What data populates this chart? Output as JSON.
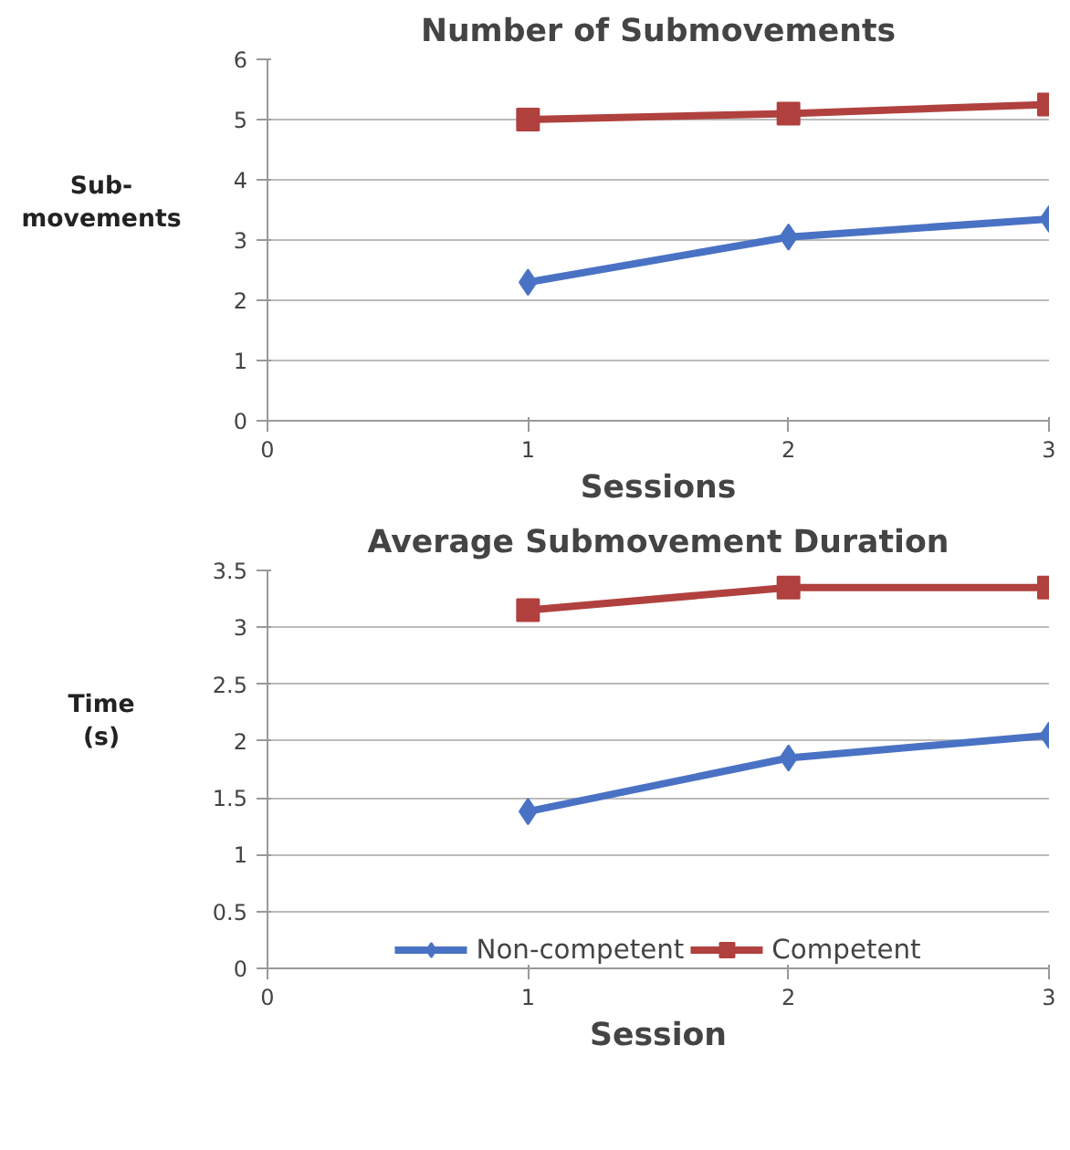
{
  "chart_data": [
    {
      "type": "line",
      "title": "Number of Submovements",
      "xlabel": "Sessions",
      "ylabel": "Sub-\nmovements",
      "x": [
        1,
        2,
        3
      ],
      "xlim": [
        0,
        3
      ],
      "xticks": [
        0,
        1,
        2,
        3
      ],
      "ylim": [
        0,
        6
      ],
      "yticks": [
        0,
        1,
        2,
        3,
        4,
        5,
        6
      ],
      "grid": "y",
      "legend": false,
      "series": [
        {
          "color": "#4a72c4",
          "marker": "diamond",
          "values": [
            2.3,
            3.05,
            3.35
          ]
        },
        {
          "color": "#b0413e",
          "marker": "square",
          "values": [
            5.0,
            5.1,
            5.25
          ]
        }
      ]
    },
    {
      "type": "line",
      "title": "Average Submovement Duration",
      "xlabel": "Session",
      "ylabel": "Time\n(s)",
      "x": [
        1,
        2,
        3
      ],
      "xlim": [
        0,
        3
      ],
      "xticks": [
        0,
        1,
        2,
        3
      ],
      "ylim": [
        0,
        3.5
      ],
      "yticks": [
        0,
        0.5,
        1,
        1.5,
        2,
        2.5,
        3,
        3.5
      ],
      "grid": "y",
      "legend": "bottom",
      "series": [
        {
          "name": "Non-competent",
          "color": "#4a72c4",
          "marker": "diamond",
          "values": [
            1.38,
            1.85,
            2.05
          ]
        },
        {
          "name": "Competent",
          "color": "#b0413e",
          "marker": "square",
          "values": [
            3.15,
            3.35,
            3.35
          ]
        }
      ]
    }
  ]
}
